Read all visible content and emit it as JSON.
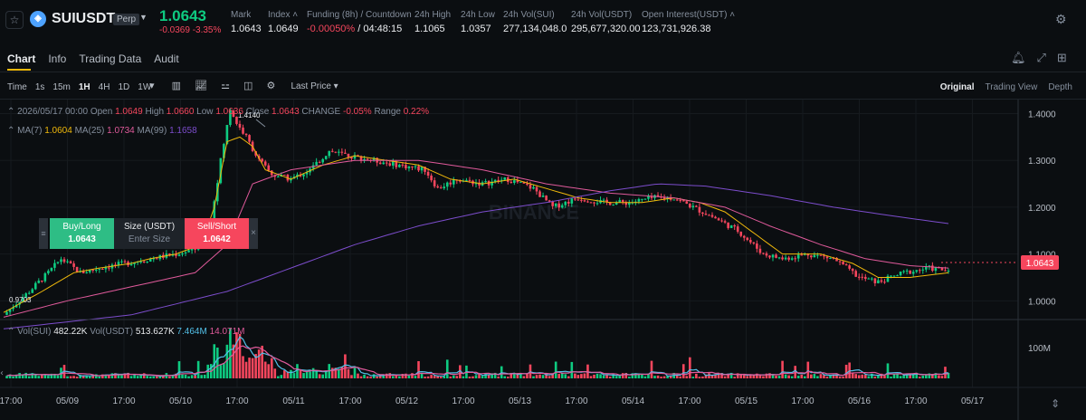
{
  "header": {
    "symbol": "SUIUSDT",
    "contract_badge": "Perp",
    "last_price": "1.0643",
    "change": "-0.0369",
    "change_pct": "-3.35%",
    "stats": [
      {
        "label": "Mark",
        "value": "1.0643",
        "tone": "neutral"
      },
      {
        "label": "Index",
        "value": "1.0649",
        "tone": "neutral"
      },
      {
        "label": "Funding (8h) / Countdown",
        "value": "-0.00050%",
        "value2": " / 04:48:15",
        "tone": "down"
      },
      {
        "label": "24h High",
        "value": "1.1065",
        "tone": "neutral"
      },
      {
        "label": "24h Low",
        "value": "1.0357",
        "tone": "neutral"
      },
      {
        "label": "24h Vol(SUI)",
        "value": "277,134,048.0",
        "tone": "neutral"
      },
      {
        "label": "24h Vol(USDT)",
        "value": "295,677,320.00",
        "tone": "neutral"
      },
      {
        "label": "Open Interest(USDT)",
        "value": "123,731,926.38",
        "tone": "neutral"
      }
    ]
  },
  "tabs": [
    "Chart",
    "Info",
    "Trading Data",
    "Audit"
  ],
  "active_tab": "Chart",
  "toolbar": {
    "time_label": "Time",
    "intervals": [
      "1s",
      "15m",
      "1H",
      "4H",
      "1D",
      "1W"
    ],
    "active_interval": "1H",
    "price_type": "Last Price",
    "views": [
      "Original",
      "Trading View",
      "Depth"
    ],
    "active_view": "Original"
  },
  "ohlc_legend": {
    "date": "2026/05/17 00:00",
    "open_label": "Open",
    "open": "1.0649",
    "high_label": "High",
    "high": "1.0660",
    "low_label": "Low",
    "low": "1.0636",
    "close_label": "Close",
    "close": "1.0643",
    "change_label": "CHANGE",
    "change": "-0.05%",
    "range_label": "Range",
    "range": "0.22%"
  },
  "ma_legend": {
    "ma7_label": "MA(7)",
    "ma7": "1.0604",
    "ma25_label": "MA(25)",
    "ma25": "1.0734",
    "ma99_label": "MA(99)",
    "ma99": "1.1658"
  },
  "vol_legend": {
    "sui_label": "Vol(SUI)",
    "sui": "482.22K",
    "usdt_label": "Vol(USDT)",
    "usdt": "513.627K",
    "ma1": "7.464M",
    "ma2": "14.071M"
  },
  "order_panel": {
    "buy_label": "Buy/Long",
    "buy_price": "1.0643",
    "size_label": "Size (USDT)",
    "size_placeholder": "Enter Size",
    "sell_label": "Sell/Short",
    "sell_price": "1.0642"
  },
  "price_axis": [
    "1.4000",
    "1.3000",
    "1.2000",
    "1.1000",
    "1.0000"
  ],
  "volume_axis": [
    "100M"
  ],
  "time_axis": [
    "17:00",
    "05/09",
    "17:00",
    "05/10",
    "17:00",
    "05/11",
    "17:00",
    "05/12",
    "17:00",
    "05/13",
    "17:00",
    "05/14",
    "17:00",
    "05/15",
    "17:00",
    "05/16",
    "17:00",
    "05/17"
  ],
  "chart_annotations": {
    "high_marker": "1.4140",
    "low_marker": "0.9703",
    "current_price_tag": "1.0643",
    "watermark": "BINANCE"
  },
  "colors": {
    "up": "#0ecb81",
    "down": "#f6465d",
    "ma7": "#f0b90b",
    "ma25": "#e05a9b",
    "ma99": "#7c4dcc",
    "bg": "#0b0e11"
  },
  "chart_data": {
    "type": "candlestick",
    "title": "",
    "interval": "1H",
    "y_range": [
      0.96,
      1.43
    ],
    "volume_range_M": [
      0,
      130
    ],
    "x_start": "05/08 17:00",
    "x_end": "05/17 00:00",
    "series": [
      {
        "name": "MA(7)",
        "points": [
          [
            0,
            0.975
          ],
          [
            12,
            1.02
          ],
          [
            22,
            1.06
          ],
          [
            30,
            1.07
          ],
          [
            40,
            1.08
          ],
          [
            46,
            1.09
          ],
          [
            54,
            1.1
          ],
          [
            62,
            1.12
          ],
          [
            66,
            1.2
          ],
          [
            70,
            1.34
          ],
          [
            74,
            1.35
          ],
          [
            78,
            1.33
          ],
          [
            82,
            1.28
          ],
          [
            90,
            1.26
          ],
          [
            100,
            1.29
          ],
          [
            110,
            1.31
          ],
          [
            120,
            1.3
          ],
          [
            130,
            1.29
          ],
          [
            140,
            1.26
          ],
          [
            150,
            1.25
          ],
          [
            160,
            1.26
          ],
          [
            170,
            1.24
          ],
          [
            180,
            1.22
          ],
          [
            190,
            1.21
          ],
          [
            200,
            1.21
          ],
          [
            210,
            1.22
          ],
          [
            218,
            1.21
          ],
          [
            226,
            1.19
          ],
          [
            234,
            1.15
          ],
          [
            244,
            1.1
          ],
          [
            256,
            1.1
          ],
          [
            266,
            1.08
          ],
          [
            274,
            1.05
          ],
          [
            284,
            1.05
          ],
          [
            296,
            1.06
          ]
        ]
      },
      {
        "name": "MA(25)",
        "points": [
          [
            0,
            0.965
          ],
          [
            20,
            1.0
          ],
          [
            40,
            1.03
          ],
          [
            60,
            1.06
          ],
          [
            70,
            1.12
          ],
          [
            78,
            1.25
          ],
          [
            90,
            1.28
          ],
          [
            110,
            1.3
          ],
          [
            130,
            1.3
          ],
          [
            150,
            1.28
          ],
          [
            170,
            1.25
          ],
          [
            190,
            1.23
          ],
          [
            210,
            1.22
          ],
          [
            226,
            1.2
          ],
          [
            240,
            1.16
          ],
          [
            256,
            1.12
          ],
          [
            270,
            1.09
          ],
          [
            284,
            1.075
          ],
          [
            296,
            1.07
          ]
        ]
      },
      {
        "name": "MA(99)",
        "points": [
          [
            0,
            0.94
          ],
          [
            40,
            0.97
          ],
          [
            70,
            1.02
          ],
          [
            90,
            1.07
          ],
          [
            110,
            1.12
          ],
          [
            130,
            1.16
          ],
          [
            150,
            1.19
          ],
          [
            170,
            1.21
          ],
          [
            190,
            1.235
          ],
          [
            205,
            1.25
          ],
          [
            220,
            1.245
          ],
          [
            240,
            1.225
          ],
          [
            260,
            1.2
          ],
          [
            280,
            1.18
          ],
          [
            296,
            1.165
          ]
        ]
      }
    ],
    "close_path_hourly": [
      [
        0,
        0.97
      ],
      [
        8,
        1.02
      ],
      [
        14,
        1.06
      ],
      [
        18,
        1.09
      ],
      [
        24,
        1.06
      ],
      [
        30,
        1.07
      ],
      [
        38,
        1.08
      ],
      [
        46,
        1.09
      ],
      [
        54,
        1.1
      ],
      [
        60,
        1.11
      ],
      [
        64,
        1.13
      ],
      [
        68,
        1.3
      ],
      [
        71,
        1.41
      ],
      [
        73,
        1.38
      ],
      [
        76,
        1.35
      ],
      [
        80,
        1.3
      ],
      [
        84,
        1.27
      ],
      [
        90,
        1.26
      ],
      [
        96,
        1.28
      ],
      [
        102,
        1.32
      ],
      [
        108,
        1.31
      ],
      [
        116,
        1.3
      ],
      [
        124,
        1.29
      ],
      [
        132,
        1.28
      ],
      [
        136,
        1.24
      ],
      [
        142,
        1.26
      ],
      [
        150,
        1.25
      ],
      [
        158,
        1.26
      ],
      [
        166,
        1.24
      ],
      [
        172,
        1.2
      ],
      [
        180,
        1.22
      ],
      [
        188,
        1.21
      ],
      [
        196,
        1.21
      ],
      [
        204,
        1.22
      ],
      [
        210,
        1.22
      ],
      [
        216,
        1.2
      ],
      [
        222,
        1.18
      ],
      [
        230,
        1.15
      ],
      [
        238,
        1.1
      ],
      [
        244,
        1.09
      ],
      [
        252,
        1.1
      ],
      [
        260,
        1.09
      ],
      [
        268,
        1.05
      ],
      [
        274,
        1.04
      ],
      [
        282,
        1.06
      ],
      [
        290,
        1.07
      ],
      [
        296,
        1.064
      ]
    ]
  }
}
